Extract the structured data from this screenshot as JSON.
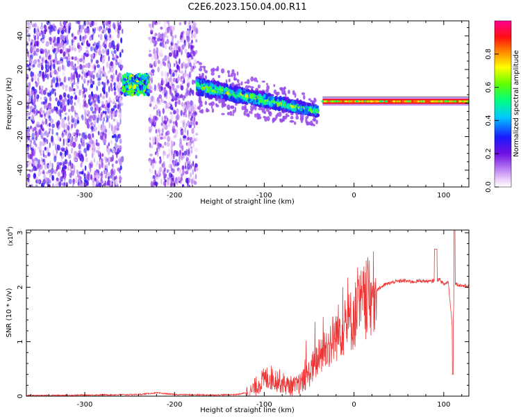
{
  "title": "C2E6.2023.150.04.00.R11",
  "chart_data": [
    {
      "type": "heatmap",
      "xlabel": "Height of straight line (km)",
      "ylabel": "Frequency (Hz)",
      "xlim": [
        -365,
        128
      ],
      "ylim": [
        -50,
        49
      ],
      "xticks": [
        -300,
        -200,
        -100,
        0,
        100
      ],
      "yticks": [
        -40,
        -20,
        0,
        20,
        40
      ],
      "colorbar": {
        "label": "Normalized spectral amplitude",
        "range": [
          0,
          1
        ],
        "ticks": [
          0.0,
          0.2,
          0.4,
          0.6,
          0.8
        ],
        "colors": [
          "#ffffff",
          "#d9a8f0",
          "#8a2be2",
          "#1a1aff",
          "#00c8ff",
          "#00ff80",
          "#80ff00",
          "#ffff00",
          "#ff8000",
          "#ff0000",
          "#ff0080"
        ]
      },
      "regions": [
        {
          "desc": "broadband noise",
          "x": [
            -365,
            -258
          ],
          "freq": [
            -50,
            49
          ],
          "amplitude": 0.3
        },
        {
          "desc": "signal band",
          "x": [
            -258,
            -228
          ],
          "freq": [
            5,
            17
          ],
          "amplitude": 0.5
        },
        {
          "desc": "broadband noise",
          "x": [
            -228,
            -175
          ],
          "freq": [
            -50,
            49
          ],
          "amplitude": 0.25
        },
        {
          "desc": "descending signal",
          "x": [
            -175,
            -40
          ],
          "freq_start": 10,
          "freq_end": -5,
          "amplitude": 0.5
        },
        {
          "desc": "steady line",
          "x": [
            -35,
            128
          ],
          "freq": [
            0,
            2
          ],
          "amplitude": 0.95
        }
      ]
    },
    {
      "type": "line",
      "xlabel": "Height of straight line (km)",
      "ylabel": "SNR (10 * v/v)",
      "y_multiplier": "(x10",
      "y_multiplier_exp": "4",
      "y_multiplier_close": ")",
      "xlim": [
        -365,
        128
      ],
      "ylim": [
        0,
        3.05
      ],
      "xticks": [
        -300,
        -200,
        -100,
        0,
        100
      ],
      "yticks": [
        0,
        1,
        2,
        3
      ],
      "color": "#ee3333",
      "series": [
        {
          "x": [
            -365,
            -300,
            -240,
            -220,
            -200,
            -160,
            -130,
            -115,
            -105,
            -95,
            -85,
            -75,
            -65,
            -55,
            -45,
            -35,
            -25,
            -15,
            -5,
            5,
            15,
            25,
            35,
            45,
            55,
            65,
            75,
            85,
            95,
            100,
            105,
            110,
            112,
            115,
            120,
            128
          ],
          "y": [
            0.01,
            0.02,
            0.03,
            0.06,
            0.03,
            0.02,
            0.03,
            0.08,
            0.25,
            0.35,
            0.3,
            0.2,
            0.18,
            0.3,
            0.55,
            0.8,
            1.0,
            1.25,
            1.35,
            1.6,
            1.8,
            1.95,
            2.05,
            2.1,
            2.12,
            2.1,
            2.12,
            2.1,
            2.15,
            2.05,
            2.1,
            1.2,
            2.1,
            2.05,
            2.03,
            2.02
          ]
        }
      ]
    }
  ]
}
